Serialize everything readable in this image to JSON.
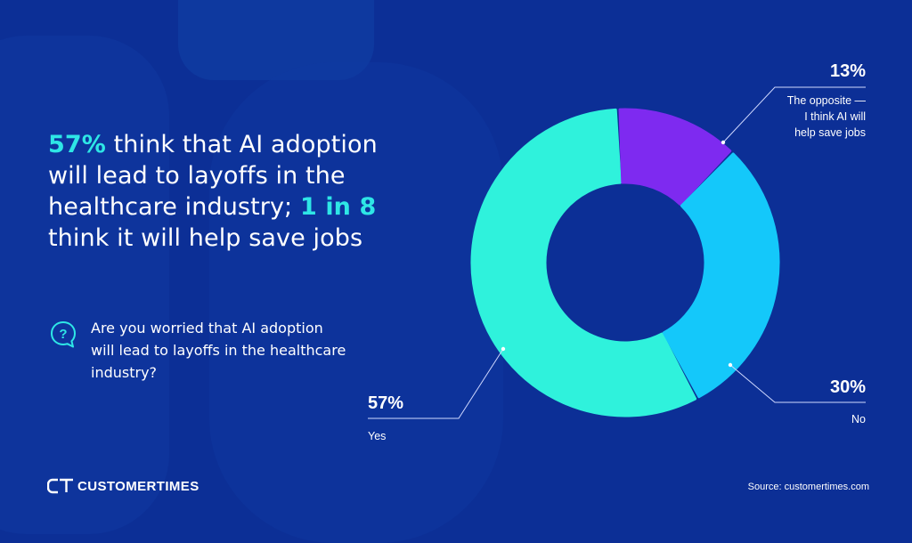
{
  "headline": {
    "part1": "57%",
    "part2": " think that AI adoption will lead to layoffs in the healthcare industry; ",
    "part3": "1 in 8",
    "part4": " think it will help save jobs"
  },
  "question": {
    "text": "Are you worried that AI adoption will lead to layoffs in the healthcare industry?",
    "icon": "question-bubble-icon"
  },
  "chart_data": {
    "type": "pie",
    "donut": true,
    "slices": [
      {
        "label": "Yes",
        "percent_label": "57%",
        "value": 57,
        "color": "#2ff2dc"
      },
      {
        "label": "The opposite — I think AI will help save jobs",
        "percent_label": "13%",
        "value": 13,
        "color": "#7e2af0"
      },
      {
        "label": "No",
        "percent_label": "30%",
        "value": 30,
        "color": "#14c8fa"
      }
    ]
  },
  "footer": {
    "logo_text": "CUSTOMERTIMES",
    "source": "Source: customertimes.com"
  },
  "colors": {
    "background": "#0c2f96",
    "accent": "#2ee6e6"
  }
}
